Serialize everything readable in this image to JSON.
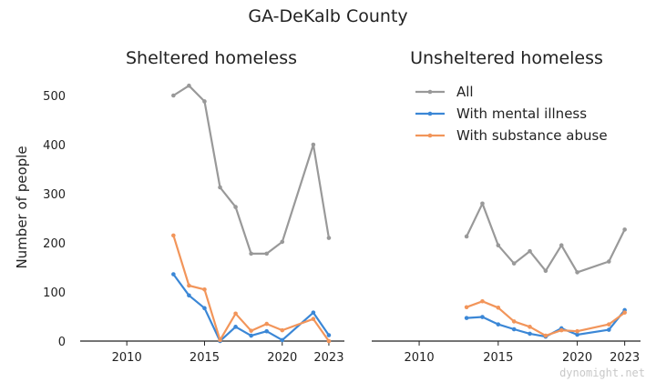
{
  "figure": {
    "title": "GA-DeKalb County",
    "watermark": "dynomight.net"
  },
  "legend": {
    "items": [
      {
        "label": "All",
        "color": "#999999"
      },
      {
        "label": "With mental illness",
        "color": "#3b87d6"
      },
      {
        "label": "With substance abuse",
        "color": "#f2955a"
      }
    ],
    "position": "top-right of right panel"
  },
  "chart_data": [
    {
      "type": "line",
      "title": "Sheltered homeless",
      "xlabel": "",
      "ylabel": "Number of people",
      "xlim": [
        2007,
        2024
      ],
      "ylim": [
        0,
        550
      ],
      "xticks": [
        2010,
        2015,
        2020,
        2023
      ],
      "yticks": [
        0,
        100,
        200,
        300,
        400,
        500
      ],
      "grid": false,
      "series": [
        {
          "name": "All",
          "color": "#999999",
          "x": [
            2013,
            2014,
            2015,
            2016,
            2017,
            2018,
            2019,
            2020,
            2022,
            2023
          ],
          "y": [
            500,
            520,
            488,
            313,
            273,
            178,
            178,
            202,
            400,
            210
          ]
        },
        {
          "name": "With mental illness",
          "color": "#3b87d6",
          "x": [
            2013,
            2014,
            2015,
            2016,
            2017,
            2018,
            2019,
            2020,
            2022,
            2023
          ],
          "y": [
            136,
            93,
            67,
            0,
            29,
            11,
            20,
            2,
            58,
            12
          ]
        },
        {
          "name": "With substance abuse",
          "color": "#f2955a",
          "x": [
            2013,
            2014,
            2015,
            2016,
            2017,
            2018,
            2019,
            2020,
            2022,
            2023
          ],
          "y": [
            215,
            113,
            105,
            2,
            56,
            21,
            35,
            22,
            45,
            0
          ]
        }
      ]
    },
    {
      "type": "line",
      "title": "Unsheltered homeless",
      "xlabel": "",
      "ylabel": "",
      "xlim": [
        2007,
        2024
      ],
      "ylim": [
        0,
        550
      ],
      "xticks": [
        2010,
        2015,
        2020,
        2023
      ],
      "yticks": [],
      "grid": false,
      "series": [
        {
          "name": "All",
          "color": "#999999",
          "x": [
            2013,
            2014,
            2015,
            2016,
            2017,
            2018,
            2019,
            2020,
            2022,
            2023
          ],
          "y": [
            213,
            280,
            195,
            158,
            183,
            143,
            195,
            140,
            162,
            227
          ]
        },
        {
          "name": "With mental illness",
          "color": "#3b87d6",
          "x": [
            2013,
            2014,
            2015,
            2016,
            2017,
            2018,
            2019,
            2020,
            2022,
            2023
          ],
          "y": [
            47,
            49,
            34,
            24,
            15,
            9,
            26,
            13,
            23,
            63
          ]
        },
        {
          "name": "With substance abuse",
          "color": "#f2955a",
          "x": [
            2013,
            2014,
            2015,
            2016,
            2017,
            2018,
            2019,
            2020,
            2022,
            2023
          ],
          "y": [
            69,
            81,
            68,
            40,
            29,
            11,
            22,
            20,
            34,
            58
          ]
        }
      ]
    }
  ]
}
